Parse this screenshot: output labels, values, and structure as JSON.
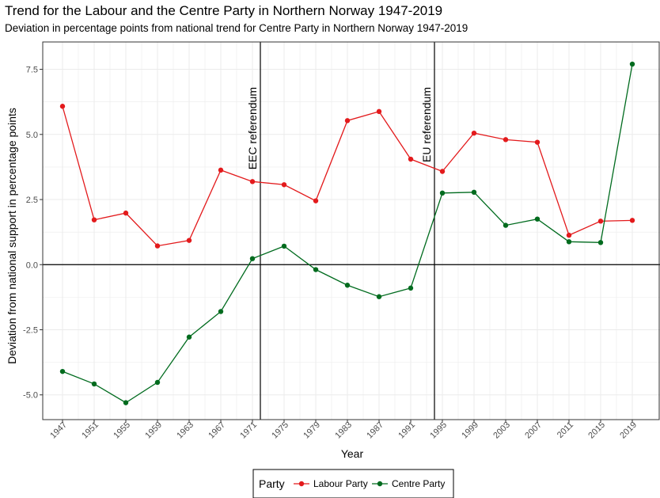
{
  "title": "Trend for the Labour and the Centre Party in Northern Norway 1947-2019",
  "subtitle": "Deviation in percentage points from national trend for Centre Party in Northern Norway 1947-2019",
  "colors": {
    "labour": "#e31a1c",
    "centre": "#006b1e",
    "grid": "#ebebeb",
    "frame": "#333333"
  },
  "chart_data": {
    "type": "line",
    "xlabel": "Year",
    "ylabel": "Deviation from national support in percentage points",
    "x": [
      1947,
      1951,
      1955,
      1959,
      1963,
      1967,
      1971,
      1975,
      1979,
      1983,
      1987,
      1991,
      1995,
      1999,
      2003,
      2007,
      2011,
      2015,
      2019
    ],
    "xticks": [
      "1947",
      "1951",
      "1955",
      "1959",
      "1963",
      "1967",
      "1971",
      "1975",
      "1979",
      "1983",
      "1987",
      "1991",
      "1995",
      "1999",
      "2003",
      "2007",
      "2011",
      "2015",
      "2019"
    ],
    "yticks": [
      "-5.0",
      "-2.5",
      "0.0",
      "2.5",
      "5.0",
      "7.5"
    ],
    "ylim": [
      -5.95,
      8.55
    ],
    "xlim": [
      1944.5,
      2022.5
    ],
    "grid": true,
    "legend_position": "bottom",
    "legend_title": "Party",
    "series": [
      {
        "name": "Labour Party",
        "color": "#e31a1c",
        "values": [
          6.08,
          1.72,
          1.98,
          0.72,
          0.93,
          3.63,
          3.19,
          3.07,
          2.45,
          5.53,
          5.88,
          4.05,
          3.58,
          5.05,
          4.8,
          4.7,
          1.13,
          1.67,
          1.7
        ]
      },
      {
        "name": "Centre Party",
        "color": "#006b1e",
        "values": [
          -4.1,
          -4.58,
          -5.3,
          -4.52,
          -2.78,
          -1.8,
          0.23,
          0.71,
          -0.19,
          -0.79,
          -1.23,
          -0.9,
          2.75,
          2.78,
          1.51,
          1.75,
          0.88,
          0.85,
          7.7
        ]
      }
    ],
    "annotations": [
      {
        "label": "EEC referendum",
        "x": 1972
      },
      {
        "label": "EU referendum",
        "x": 1994
      }
    ],
    "hline": 0
  }
}
